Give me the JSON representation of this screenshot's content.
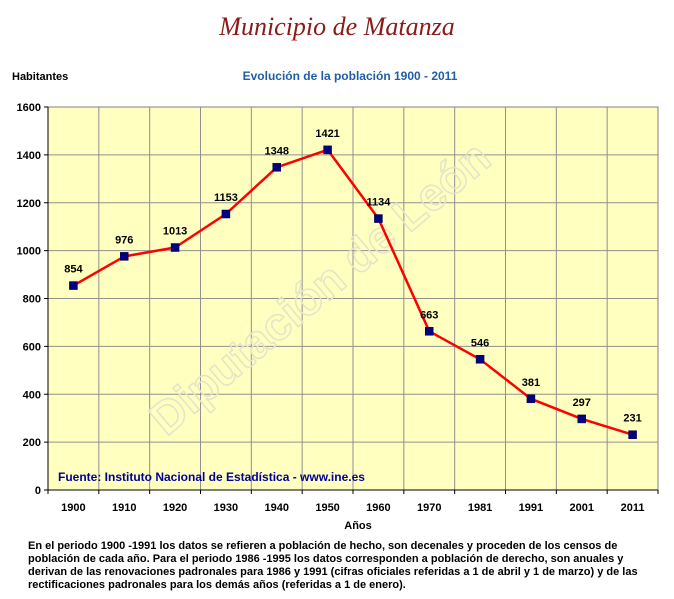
{
  "header": {
    "title": "Municipio de Matanza"
  },
  "chart_data": {
    "type": "line",
    "title": "Evolución de la población 1900 - 2011",
    "ylabel": "Habitantes",
    "xlabel": "Años",
    "categories": [
      "1900",
      "1910",
      "1920",
      "1930",
      "1940",
      "1950",
      "1960",
      "1970",
      "1981",
      "1991",
      "2001",
      "2011"
    ],
    "series": [
      {
        "values": [
          854,
          976,
          1013,
          1153,
          1348,
          1421,
          1134,
          663,
          546,
          381,
          297,
          231
        ]
      }
    ],
    "ylim": [
      0,
      1600
    ],
    "yticks": [
      0,
      200,
      400,
      600,
      800,
      1000,
      1200,
      1400,
      1600
    ],
    "grid": true,
    "source": "Fuente: Instituto Nacional de Estadística - www.ine.es",
    "watermark": "Diputación de León",
    "colors": {
      "line": "#FF0000",
      "marker": "#000080",
      "plot_background": "#FFFFC0",
      "title": "#1F5EAA",
      "source": "#000099"
    }
  },
  "footnote": "En el periodo 1900 -1991 los datos se refieren a población de hecho, son decenales y proceden de los censos de población de cada año. Para el periodo 1986 -1995 los datos corresponden a población de derecho, son anuales y derivan de las renovaciones padronales para 1986 y 1991 (cifras oficiales referidas a 1 de abril y 1 de marzo) y de las rectificaciones padronales para los demás años (referidas a 1 de enero)."
}
